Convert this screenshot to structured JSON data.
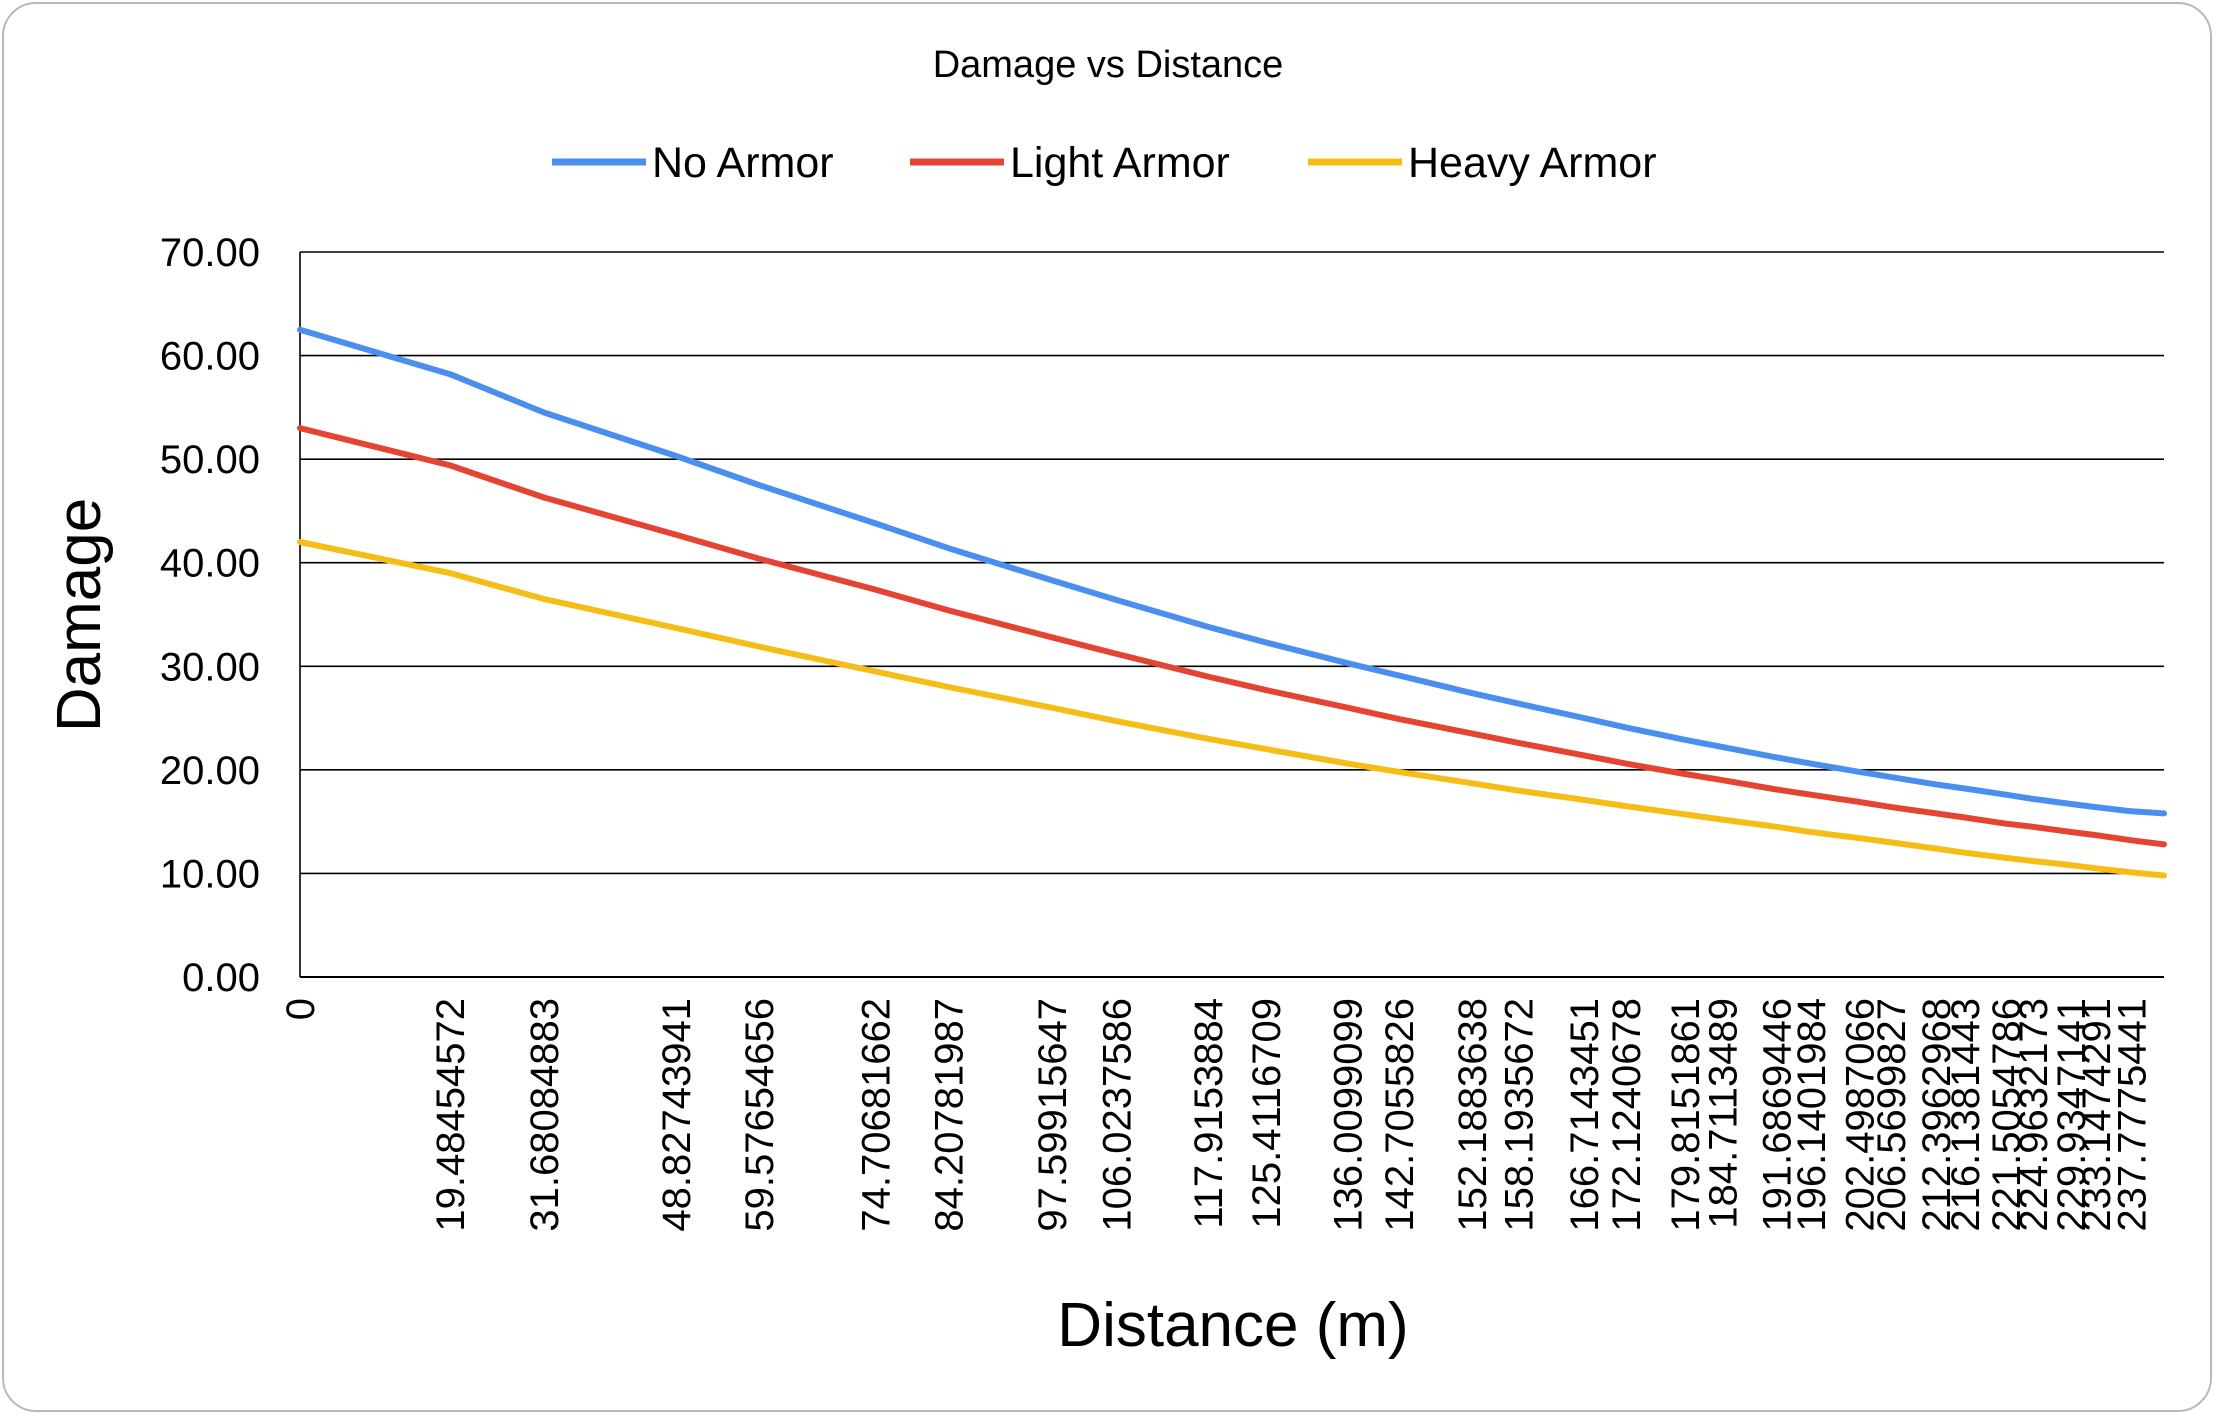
{
  "chart_data": {
    "type": "line",
    "title": "Damage vs Distance",
    "xlabel": "Distance (m)",
    "ylabel": "Damage",
    "ylim": [
      0,
      70
    ],
    "y_ticks": [
      "0.00",
      "10.00",
      "20.00",
      "30.00",
      "40.00",
      "50.00",
      "60.00",
      "70.00"
    ],
    "x_tick_labels": [
      "0",
      "19.48454572",
      "31.68084883",
      "48.82743941",
      "59.57654656",
      "74.70681662",
      "84.20781987",
      "97.59915647",
      "106.0237586",
      "117.9153884",
      "125.4116709",
      "136.0099099",
      "142.7055826",
      "152.1883638",
      "158.1935672",
      "166.7143451",
      "172.1240678",
      "179.8151861",
      "184.7113489",
      "191.6869446",
      "196.1401984",
      "202.4987066",
      "206.5699827",
      "212.3962968",
      "216.1381443",
      "221.5054786",
      "224.9632173",
      "229.9347141",
      "233.1474291",
      "237.7775441"
    ],
    "x": [
      0,
      19.48454572,
      31.68084883,
      48.82743941,
      59.57654656,
      74.70681662,
      84.20781987,
      97.59915647,
      106.0237586,
      117.9153884,
      125.4116709,
      136.0099099,
      142.7055826,
      152.1883638,
      158.1935672,
      166.7143451,
      172.1240678,
      179.8151861,
      184.7113489,
      191.6869446,
      196.1401984,
      202.4987066,
      206.5699827,
      212.3962968,
      216.1381443,
      221.5054786,
      224.9632173,
      229.9347141,
      233.1474291,
      237.7775441,
      242
    ],
    "series": [
      {
        "name": "No Armor",
        "color": "#4a8ef0",
        "values": [
          62.5,
          58.2,
          54.5,
          50.3,
          47.5,
          43.8,
          41.4,
          38.3,
          36.4,
          33.8,
          32.3,
          30.3,
          29.1,
          27.4,
          26.4,
          25.0,
          24.1,
          22.9,
          22.2,
          21.2,
          20.6,
          19.8,
          19.3,
          18.6,
          18.2,
          17.6,
          17.2,
          16.7,
          16.4,
          16.0,
          15.8
        ]
      },
      {
        "name": "Light Armor",
        "color": "#e64433",
        "values": [
          53.0,
          49.4,
          46.3,
          42.7,
          40.4,
          37.4,
          35.4,
          32.8,
          31.2,
          29.0,
          27.7,
          26.0,
          24.9,
          23.5,
          22.6,
          21.4,
          20.6,
          19.6,
          19.0,
          18.1,
          17.6,
          16.9,
          16.4,
          15.8,
          15.4,
          14.8,
          14.5,
          14.0,
          13.7,
          13.2,
          12.8
        ]
      },
      {
        "name": "Heavy Armor",
        "color": "#f6bd16",
        "values": [
          42.0,
          39.0,
          36.5,
          33.7,
          31.9,
          29.5,
          28.0,
          26.0,
          24.7,
          23.0,
          22.0,
          20.6,
          19.8,
          18.7,
          18.0,
          17.1,
          16.5,
          15.7,
          15.2,
          14.5,
          14.0,
          13.4,
          13.0,
          12.4,
          12.0,
          11.5,
          11.2,
          10.8,
          10.5,
          10.1,
          9.8
        ]
      }
    ],
    "grid": true,
    "legend_position": "top"
  }
}
